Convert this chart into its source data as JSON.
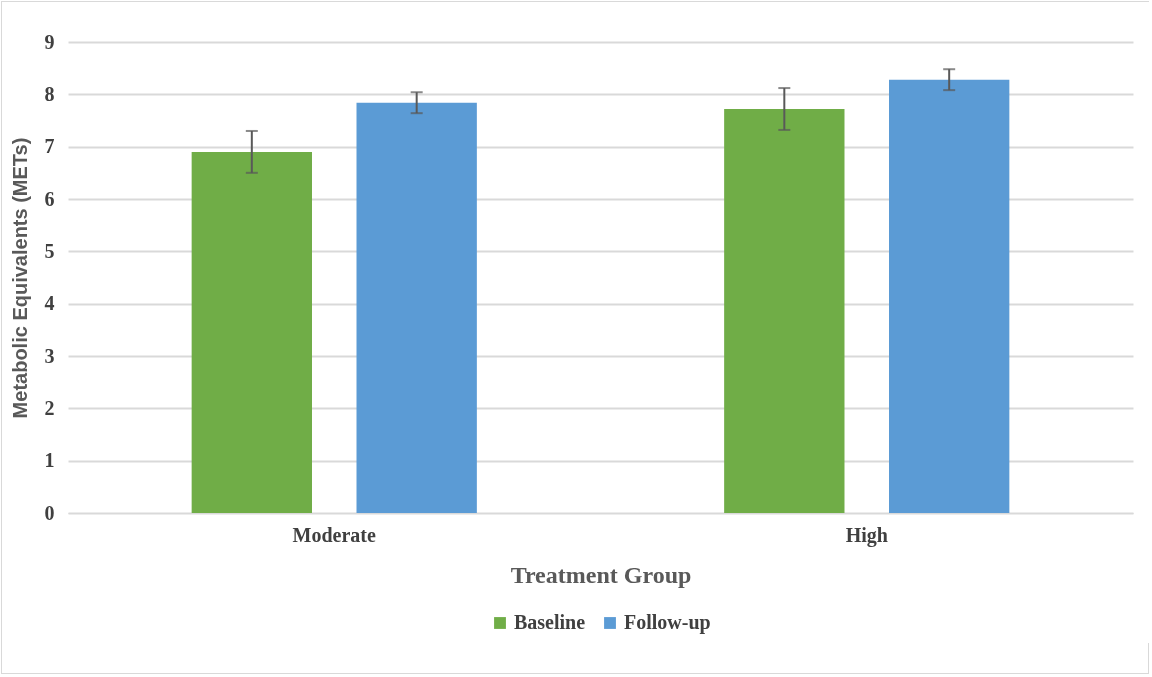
{
  "chart_data": {
    "type": "bar",
    "xlabel": "Treatment Group",
    "ylabel": "Metabolic Equivalents (METs)",
    "categories": [
      "Moderate",
      "High"
    ],
    "series": [
      {
        "name": "Baseline",
        "color": "#70ad47",
        "values": [
          6.9,
          7.72
        ],
        "errors": [
          0.4,
          0.4
        ]
      },
      {
        "name": "Follow-up",
        "color": "#5b9bd5",
        "values": [
          7.84,
          8.28
        ],
        "errors": [
          0.2,
          0.2
        ]
      }
    ],
    "ylim": [
      0,
      9
    ],
    "yticks": [
      0,
      1,
      2,
      3,
      4,
      5,
      6,
      7,
      8,
      9
    ],
    "grid": "y",
    "legend": "bottom"
  }
}
